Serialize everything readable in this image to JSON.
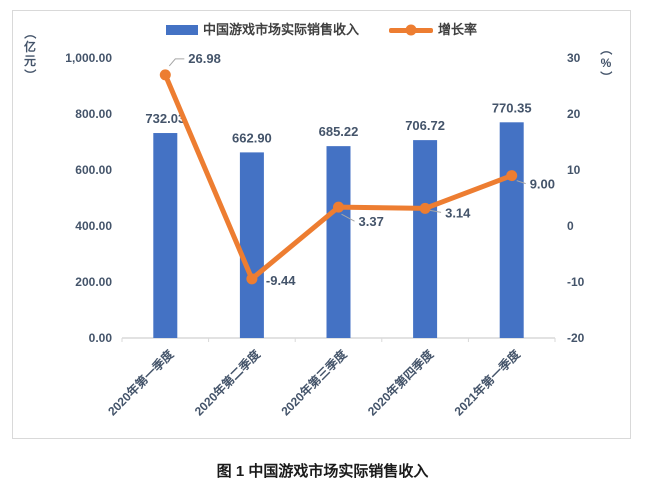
{
  "caption": "图 1 中国游戏市场实际销售收入",
  "colors": {
    "bar": "#4472C4",
    "line": "#ED7D31",
    "label_text": "#44546A",
    "axis_line": "#D9D9D9",
    "leader": "#A6A6A6",
    "border": "#D9D9D9"
  },
  "chart_data": {
    "type": "combo",
    "title": "图 1 中国游戏市场实际销售收入",
    "grid": false,
    "legend_position": "top",
    "categories": [
      "2020年第一季度",
      "2020年第二季度",
      "2020年第三季度",
      "2020年第四季度",
      "2021年第一季度"
    ],
    "series": [
      {
        "name": "中国游戏市场实际销售收入",
        "type": "bar",
        "axis": "left",
        "color": "#4472C4",
        "values": [
          732.03,
          662.9,
          685.22,
          706.72,
          770.35
        ],
        "labels": [
          "732.03",
          "662.90",
          "685.22",
          "706.72",
          "770.35"
        ]
      },
      {
        "name": "增长率",
        "type": "line",
        "axis": "right",
        "color": "#ED7D31",
        "values": [
          26.98,
          -9.44,
          3.37,
          3.14,
          9.0
        ],
        "labels": [
          "26.98",
          "-9.44",
          "3.37",
          "3.14",
          "9.00"
        ]
      }
    ],
    "left_axis": {
      "unit": "（亿元）",
      "min": 0,
      "max": 1000,
      "ticks": [
        "1,000.00",
        "800.00",
        "600.00",
        "400.00",
        "200.00",
        "0.00"
      ]
    },
    "right_axis": {
      "unit": "（%）",
      "min": -20,
      "max": 30,
      "ticks": [
        "30",
        "20",
        "10",
        "0",
        "-10",
        "-20"
      ]
    }
  }
}
